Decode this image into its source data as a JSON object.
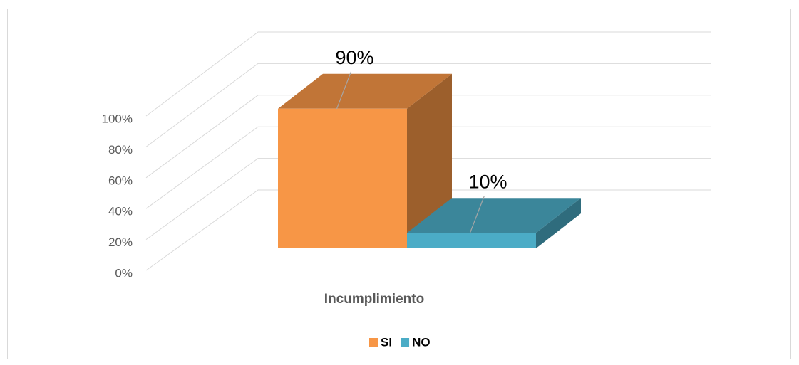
{
  "chart_data": {
    "type": "bar3d",
    "categories": [
      "Incumplimiento"
    ],
    "series": [
      {
        "name": "SI",
        "color": "#F79646",
        "values": [
          90
        ],
        "value_labels": [
          "90%"
        ]
      },
      {
        "name": "NO",
        "color": "#4BACC6",
        "values": [
          10
        ],
        "value_labels": [
          "10%"
        ]
      }
    ],
    "ylim": [
      0,
      100
    ],
    "yticks": [
      {
        "value": 0,
        "label": "0%"
      },
      {
        "value": 20,
        "label": "20%"
      },
      {
        "value": 40,
        "label": "40%"
      },
      {
        "value": 60,
        "label": "60%"
      },
      {
        "value": 80,
        "label": "80%"
      },
      {
        "value": 100,
        "label": "100%"
      }
    ],
    "grid": true,
    "legend": "bottom"
  }
}
